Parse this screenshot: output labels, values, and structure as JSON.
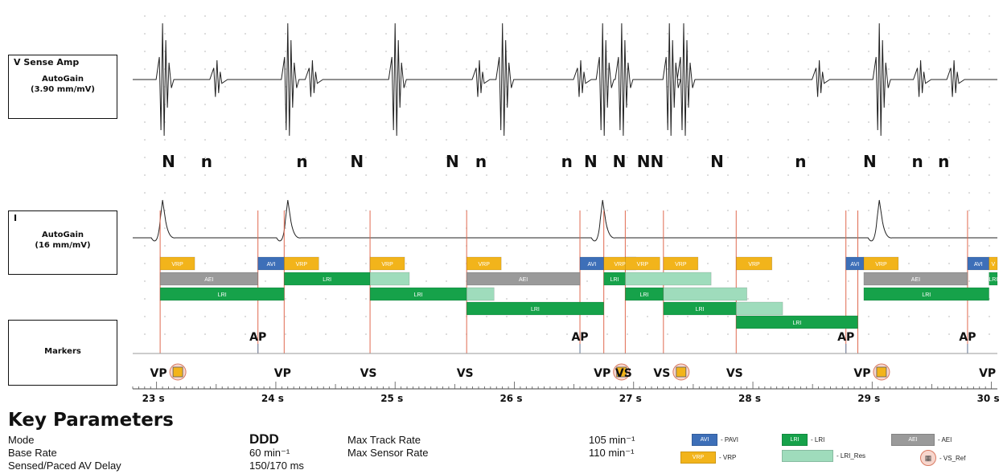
{
  "channels": {
    "v_sense": {
      "title": "V Sense Amp",
      "gain_label": "AutoGain",
      "gain_value": "(3.90 mm/mV)"
    },
    "ecg": {
      "title": "I",
      "gain_label": "AutoGain",
      "gain_value": "(16 mm/mV)"
    },
    "markers": {
      "title": "Markers"
    }
  },
  "chart_data": {
    "type": "timeline",
    "x_axis": {
      "unit": "s",
      "range": [
        22.8,
        30.05
      ],
      "tick_labels": [
        "23 s",
        "24 s",
        "25 s",
        "26 s",
        "27 s",
        "28 s",
        "29 s",
        "30 s"
      ],
      "tick_values": [
        23,
        24,
        25,
        26,
        27,
        28,
        29,
        30
      ]
    },
    "colors": {
      "avi": "#3d6fb8",
      "lri": "#16a24a",
      "lri_res": "#9fdcbc",
      "aei": "#9a9a9a",
      "vrp": "#f2b41b",
      "ref": "#d87a62",
      "trace": "#222222",
      "event_line": "#e06a50"
    },
    "sense_annotations": [
      {
        "t": 23.1,
        "label": "N"
      },
      {
        "t": 23.42,
        "label": "n"
      },
      {
        "t": 24.22,
        "label": "n"
      },
      {
        "t": 24.68,
        "label": "N"
      },
      {
        "t": 25.48,
        "label": "N"
      },
      {
        "t": 25.72,
        "label": "n"
      },
      {
        "t": 26.44,
        "label": "n"
      },
      {
        "t": 26.64,
        "label": "N"
      },
      {
        "t": 26.88,
        "label": "N"
      },
      {
        "t": 27.14,
        "label": "NN"
      },
      {
        "t": 27.7,
        "label": "N"
      },
      {
        "t": 28.4,
        "label": "n"
      },
      {
        "t": 28.98,
        "label": "N"
      },
      {
        "t": 29.38,
        "label": "n"
      },
      {
        "t": 29.6,
        "label": "n"
      }
    ],
    "v_complexes": [
      23.05,
      24.1,
      25.0,
      25.9,
      26.74,
      26.9,
      27.3,
      27.42,
      29.06
    ],
    "v_noise": [
      23.5,
      24.3,
      25.7,
      26.55,
      28.55,
      29.4,
      29.68
    ],
    "ecg_waves": [
      23.05,
      24.1,
      26.74,
      29.06
    ],
    "event_lines": [
      23.03,
      23.85,
      24.07,
      24.79,
      25.6,
      26.55,
      26.75,
      26.93,
      27.25,
      27.86,
      28.78,
      28.88,
      29.8
    ],
    "timing_bars": [
      {
        "row": 0,
        "kind": "vrp",
        "label": "VRP",
        "t0": 23.03,
        "t1": 23.32
      },
      {
        "row": 0,
        "kind": "avi",
        "label": "AVI",
        "t0": 23.85,
        "t1": 24.07
      },
      {
        "row": 0,
        "kind": "vrp",
        "label": "VRP",
        "t0": 24.07,
        "t1": 24.36
      },
      {
        "row": 0,
        "kind": "vrp",
        "label": "VRP",
        "t0": 24.79,
        "t1": 25.08
      },
      {
        "row": 0,
        "kind": "vrp",
        "label": "VRP",
        "t0": 25.6,
        "t1": 25.89
      },
      {
        "row": 0,
        "kind": "avi",
        "label": "AVI",
        "t0": 26.55,
        "t1": 26.75
      },
      {
        "row": 0,
        "kind": "vrp",
        "label": "VRP",
        "t0": 26.75,
        "t1": 27.02
      },
      {
        "row": 0,
        "kind": "vrp",
        "label": "VRP",
        "t0": 26.93,
        "t1": 27.22
      },
      {
        "row": 0,
        "kind": "vrp",
        "label": "VRP",
        "t0": 27.25,
        "t1": 27.54
      },
      {
        "row": 0,
        "kind": "vrp",
        "label": "VRP",
        "t0": 27.86,
        "t1": 28.16
      },
      {
        "row": 0,
        "kind": "avi",
        "label": "AVI",
        "t0": 28.78,
        "t1": 28.93
      },
      {
        "row": 0,
        "kind": "vrp",
        "label": "VRP",
        "t0": 28.93,
        "t1": 29.22
      },
      {
        "row": 0,
        "kind": "avi",
        "label": "AVI",
        "t0": 29.8,
        "t1": 29.98
      },
      {
        "row": 0,
        "kind": "vrp",
        "label": "V",
        "t0": 29.98,
        "t1": 30.05
      },
      {
        "row": 1,
        "kind": "aei",
        "label": "AEI",
        "t0": 23.03,
        "t1": 23.85
      },
      {
        "row": 1,
        "kind": "lri",
        "label": "LRI",
        "t0": 24.07,
        "t1": 24.79
      },
      {
        "row": 1,
        "kind": "lri_res",
        "label": "",
        "t0": 24.79,
        "t1": 25.12
      },
      {
        "row": 1,
        "kind": "aei",
        "label": "AEI",
        "t0": 25.6,
        "t1": 26.55
      },
      {
        "row": 1,
        "kind": "lri",
        "label": "LRI",
        "t0": 26.75,
        "t1": 26.93
      },
      {
        "row": 1,
        "kind": "lri_res",
        "label": "",
        "t0": 26.93,
        "t1": 27.65
      },
      {
        "row": 1,
        "kind": "aei",
        "label": "AEI",
        "t0": 28.93,
        "t1": 29.8
      },
      {
        "row": 1,
        "kind": "lri",
        "label": "LRI",
        "t0": 29.98,
        "t1": 30.05
      },
      {
        "row": 2,
        "kind": "lri",
        "label": "LRI",
        "t0": 23.03,
        "t1": 24.07
      },
      {
        "row": 2,
        "kind": "lri",
        "label": "LRI",
        "t0": 24.79,
        "t1": 25.6
      },
      {
        "row": 2,
        "kind": "lri_res",
        "label": "",
        "t0": 25.6,
        "t1": 25.83
      },
      {
        "row": 2,
        "kind": "lri",
        "label": "LRI",
        "t0": 26.93,
        "t1": 27.25
      },
      {
        "row": 2,
        "kind": "lri_res",
        "label": "",
        "t0": 27.25,
        "t1": 27.95
      },
      {
        "row": 2,
        "kind": "lri",
        "label": "LRI",
        "t0": 28.93,
        "t1": 29.98
      },
      {
        "row": 3,
        "kind": "lri",
        "label": "LRI",
        "t0": 25.6,
        "t1": 26.75
      },
      {
        "row": 3,
        "kind": "lri",
        "label": "LRI",
        "t0": 27.25,
        "t1": 27.86
      },
      {
        "row": 3,
        "kind": "lri_res",
        "label": "",
        "t0": 27.86,
        "t1": 28.25
      },
      {
        "row": 4,
        "kind": "lri",
        "label": "LRI",
        "t0": 27.86,
        "t1": 28.88
      }
    ],
    "atrial_markers": [
      {
        "t": 23.85,
        "label": "AP"
      },
      {
        "t": 26.55,
        "label": "AP"
      },
      {
        "t": 28.78,
        "label": "AP"
      },
      {
        "t": 29.8,
        "label": "AP"
      }
    ],
    "ventricular_markers": [
      {
        "t": 23.03,
        "label": "VP",
        "ref": true
      },
      {
        "t": 24.07,
        "label": "VP",
        "ref": false
      },
      {
        "t": 24.79,
        "label": "VS",
        "ref": false
      },
      {
        "t": 25.6,
        "label": "VS",
        "ref": false
      },
      {
        "t": 26.75,
        "label": "VP",
        "ref": true
      },
      {
        "t": 26.93,
        "label": "VS",
        "ref": false
      },
      {
        "t": 27.25,
        "label": "VS",
        "ref": true
      },
      {
        "t": 27.86,
        "label": "VS",
        "ref": false
      },
      {
        "t": 28.93,
        "label": "VP",
        "ref": true
      },
      {
        "t": 29.98,
        "label": "VP",
        "ref": false
      }
    ]
  },
  "key_parameters": {
    "title": "Key Parameters",
    "mode_label": "Mode",
    "mode_value": "DDD",
    "base_rate_label": "Base Rate",
    "base_rate_value": "60 min⁻¹",
    "av_delay_label": "Sensed/Paced AV Delay",
    "av_delay_value": "150/170 ms",
    "max_track_label": "Max Track Rate",
    "max_track_value": "105 min⁻¹",
    "max_sensor_label": "Max Sensor Rate",
    "max_sensor_value": "110 min⁻¹"
  },
  "legend": {
    "avi": {
      "swatch": "AVI",
      "text": "- PAVI"
    },
    "lri": {
      "swatch": "LRI",
      "text": "- LRI"
    },
    "aei": {
      "swatch": "AEI",
      "text": "- AEI"
    },
    "vrp": {
      "swatch": "VRP",
      "text": "- VRP"
    },
    "lri_res": {
      "text": "- LRI_Res"
    },
    "ref": {
      "text": "- VS_Ref"
    }
  }
}
